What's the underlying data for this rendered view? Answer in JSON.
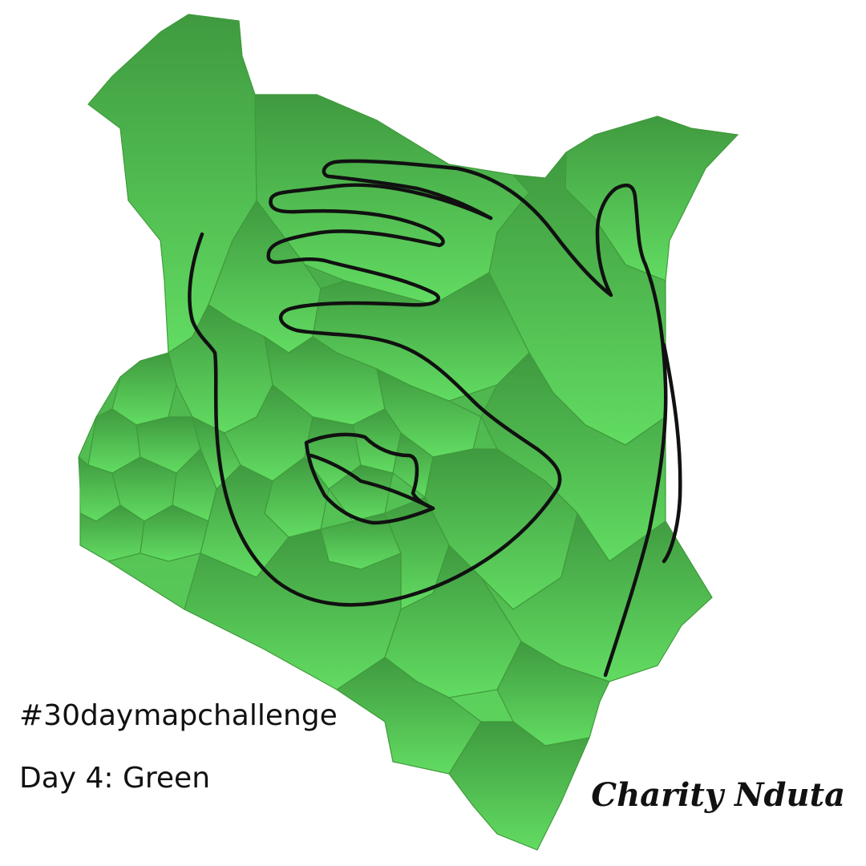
{
  "map": {
    "country": "Kenya",
    "fill_gradient": [
      "#3f9a3f",
      "#62dc62"
    ],
    "border_color": "#3f9a3b",
    "drawing_color": "#111111"
  },
  "caption": {
    "hashtag": "#30daymapchallenge",
    "day": "Day 4: Green"
  },
  "author": "Charity Nduta"
}
